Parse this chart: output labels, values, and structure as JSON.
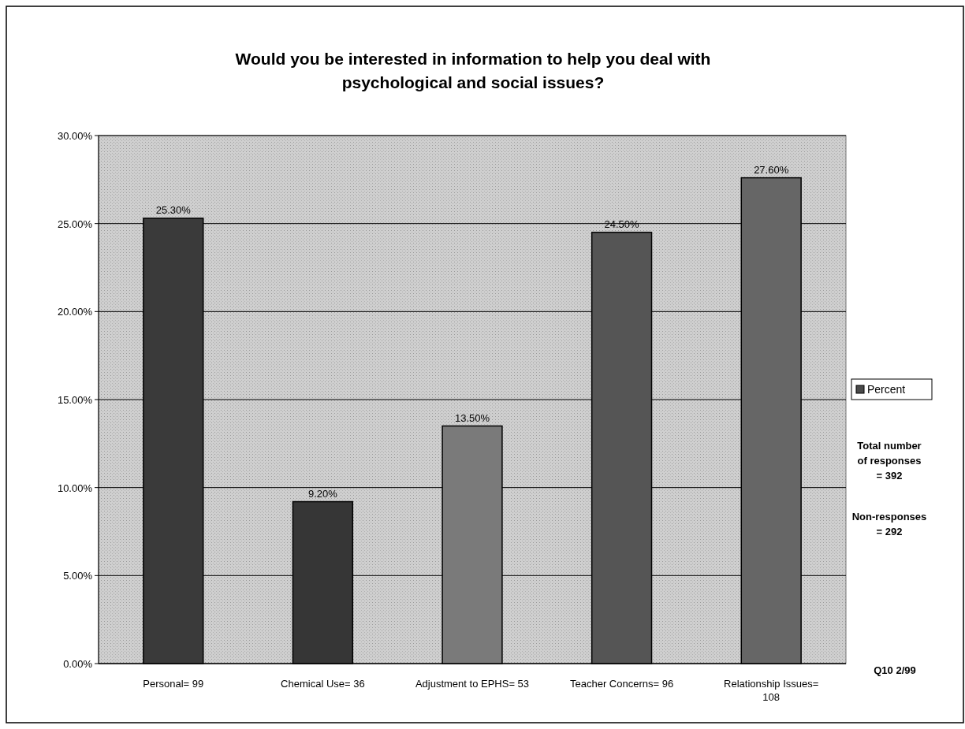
{
  "chart_data": {
    "type": "bar",
    "title": "Would you be interested in information to help you deal with psychological and social issues?",
    "categories": [
      "Personal= 99",
      "Chemical Use= 36",
      "Adjustment to EPHS= 53",
      "Teacher Concerns= 96",
      "Relationship Issues= 108"
    ],
    "series": [
      {
        "name": "Percent",
        "color": "#4a4a4a",
        "colors": [
          "#3a3a3a",
          "#363636",
          "#7a7a7a",
          "#555555",
          "#666666"
        ],
        "values": [
          25.3,
          9.2,
          13.5,
          24.5,
          27.6
        ],
        "value_labels": [
          "25.30%",
          "9.20%",
          "13.50%",
          "24.50%",
          "27.60%"
        ]
      }
    ],
    "ylim": [
      0,
      30
    ],
    "yticks": [
      {
        "value": 0,
        "label": "0.00%"
      },
      {
        "value": 5,
        "label": "5.00%"
      },
      {
        "value": 10,
        "label": "10.00%"
      },
      {
        "value": 15,
        "label": "15.00%"
      },
      {
        "value": 20,
        "label": "20.00%"
      },
      {
        "value": 25,
        "label": "25.00%"
      },
      {
        "value": 30,
        "label": "30.00%"
      }
    ],
    "grid": "y",
    "legend": "right",
    "annotations": [
      "Total number of responses = 392",
      "Non-responses = 292",
      "Q10 2/99"
    ]
  }
}
